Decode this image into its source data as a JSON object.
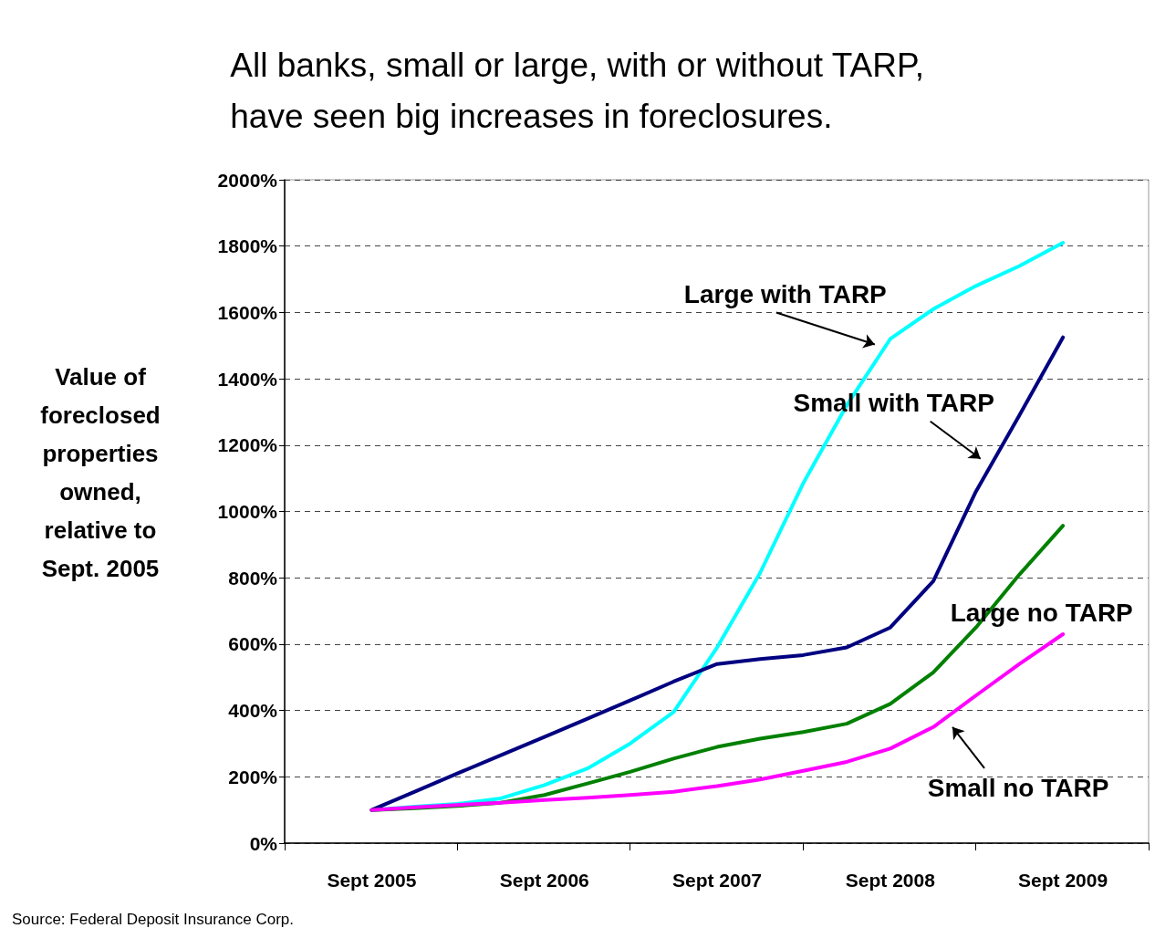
{
  "chart_data": {
    "type": "line",
    "title": "All banks, small or large, with or without TARP,\nhave seen big increases in foreclosures.",
    "ylabel": "Value of\nforeclosed\nproperties\nowned,\nrelative to\nSept. 2005",
    "annotations": [
      "Source: Federal Deposit Insurance Corp."
    ],
    "x": [
      "2005-09",
      "2005-12",
      "2006-03",
      "2006-06",
      "2006-09",
      "2006-12",
      "2007-03",
      "2007-06",
      "2007-09",
      "2007-12",
      "2008-03",
      "2008-06",
      "2008-09",
      "2008-12",
      "2009-03",
      "2009-06",
      "2009-09"
    ],
    "series": [
      {
        "name": "Large with TARP",
        "color": "#00ffff",
        "values": [
          100,
          110,
          118,
          135,
          175,
          225,
          300,
          395,
          590,
          815,
          1085,
          1320,
          1520,
          1610,
          1680,
          1740,
          1810
        ]
      },
      {
        "name": "Small with TARP",
        "color": "#000080",
        "values": [
          100,
          155,
          210,
          265,
          320,
          375,
          430,
          487,
          540,
          555,
          567,
          590,
          650,
          790,
          1060,
          1290,
          1525
        ]
      },
      {
        "name": "Large no TARP",
        "color": "#008000",
        "values": [
          100,
          105,
          112,
          122,
          145,
          180,
          215,
          255,
          290,
          315,
          335,
          360,
          420,
          515,
          650,
          810,
          957
        ]
      },
      {
        "name": "Small no TARP",
        "color": "#ff00ff",
        "values": [
          100,
          108,
          115,
          122,
          130,
          137,
          145,
          155,
          172,
          192,
          218,
          245,
          285,
          350,
          445,
          540,
          630
        ]
      }
    ],
    "xlim": [
      "2005-03",
      "2010-03"
    ],
    "xticks": [
      {
        "value": "2005-03",
        "label": null
      },
      {
        "value": "2005-09",
        "label": "Sept 2005"
      },
      {
        "value": "2006-03",
        "label": null
      },
      {
        "value": "2006-09",
        "label": "Sept 2006"
      },
      {
        "value": "2007-03",
        "label": null
      },
      {
        "value": "2007-09",
        "label": "Sept 2007"
      },
      {
        "value": "2008-03",
        "label": null
      },
      {
        "value": "2008-09",
        "label": "Sept 2008"
      },
      {
        "value": "2009-03",
        "label": null
      },
      {
        "value": "2009-09",
        "label": "Sept 2009"
      },
      {
        "value": "2010-03",
        "label": null
      }
    ],
    "ylim": [
      0,
      2000
    ],
    "yticks": [
      {
        "value": 0,
        "label": "0%"
      },
      {
        "value": 200,
        "label": "200%"
      },
      {
        "value": 400,
        "label": "400%"
      },
      {
        "value": 600,
        "label": "600%"
      },
      {
        "value": 800,
        "label": "800%"
      },
      {
        "value": 1000,
        "label": "1000%"
      },
      {
        "value": 1200,
        "label": "1200%"
      },
      {
        "value": 1400,
        "label": "1400%"
      },
      {
        "value": 1600,
        "label": "1600%"
      },
      {
        "value": 1800,
        "label": "1800%"
      },
      {
        "value": 2000,
        "label": "2000%"
      }
    ],
    "grid": "y",
    "legend": false,
    "marker": "none",
    "line_style": "solid"
  }
}
